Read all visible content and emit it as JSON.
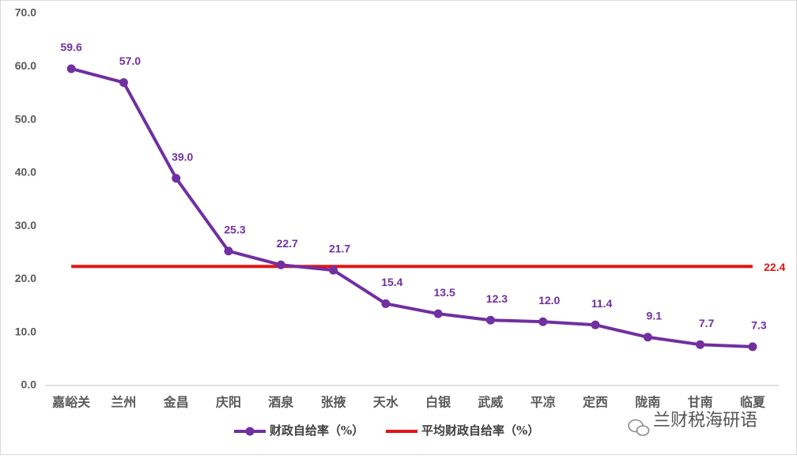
{
  "chart_data": {
    "type": "line",
    "categories": [
      "嘉峪关",
      "兰州",
      "金昌",
      "庆阳",
      "酒泉",
      "张掖",
      "天水",
      "白银",
      "武威",
      "平凉",
      "定西",
      "陇南",
      "甘南",
      "临夏"
    ],
    "series": [
      {
        "name": "财政自给率（%）",
        "color": "#7030a0",
        "values": [
          59.6,
          57.0,
          39.0,
          25.3,
          22.7,
          21.7,
          15.4,
          13.5,
          12.3,
          12.0,
          11.4,
          9.1,
          7.7,
          7.3
        ],
        "value_labels": [
          "59.6",
          "57.0",
          "39.0",
          "25.3",
          "22.7",
          "21.7",
          "15.4",
          "13.5",
          "12.3",
          "12.0",
          "11.4",
          "9.1",
          "7.7",
          "7.3"
        ]
      }
    ],
    "average": {
      "name": "平均财政自给率（%）",
      "color": "#e31414",
      "value": 22.4,
      "value_label": "22.4"
    },
    "ylim": [
      0,
      70
    ],
    "yticks": [
      {
        "value": 0,
        "label": "0.0"
      },
      {
        "value": 10,
        "label": "10.0"
      },
      {
        "value": 20,
        "label": "20.0"
      },
      {
        "value": 30,
        "label": "30.0"
      },
      {
        "value": 40,
        "label": "40.0"
      },
      {
        "value": 50,
        "label": "50.0"
      },
      {
        "value": 60,
        "label": "60.0"
      },
      {
        "value": 70,
        "label": "70.0"
      }
    ],
    "grid": false,
    "legend": "bottom",
    "watermark": "兰财税海研语"
  }
}
